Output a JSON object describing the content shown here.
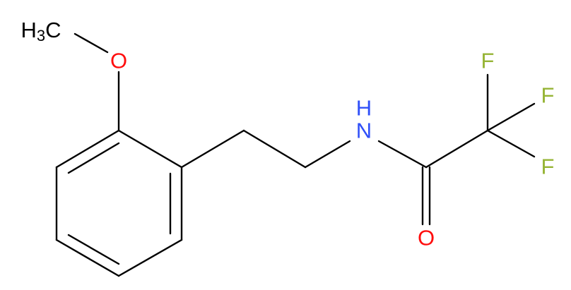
{
  "atoms": {
    "methyl": [
      "H",
      "3",
      "C"
    ],
    "methoxy_oxygen": "O",
    "amide_nitrogen": "N",
    "amide_hydrogen": "H",
    "carbonyl_oxygen": "O",
    "fluorines": [
      "F",
      "F",
      "F"
    ]
  }
}
